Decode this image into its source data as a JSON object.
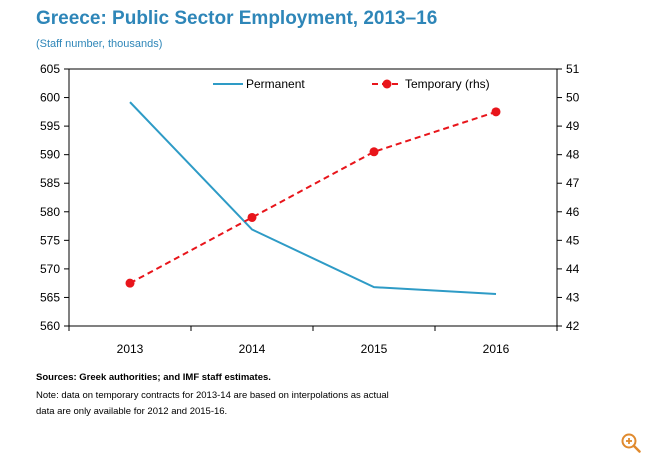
{
  "chart_data": {
    "type": "line",
    "title": "Greece: Public Sector Employment, 2013–16",
    "subtitle": "(Staff number, thousands)",
    "categories": [
      "2013",
      "2014",
      "2015",
      "2016"
    ],
    "y_left": {
      "min": 560,
      "max": 605,
      "step": 5
    },
    "y_right": {
      "min": 42,
      "max": 51,
      "step": 1
    },
    "grid": false,
    "legend_position": "top-right",
    "series": [
      {
        "name": "Permanent",
        "axis": "left",
        "style": "solid",
        "values": [
          599.2,
          576.9,
          566.8,
          565.6
        ]
      },
      {
        "name": "Temporary (rhs)",
        "axis": "right",
        "style": "dashed-markers",
        "values": [
          43.5,
          45.8,
          48.1,
          49.5
        ]
      }
    ]
  },
  "colors": {
    "title": "#2e86b8",
    "permanent": "#2e9bc6",
    "temporary": "#e8151b"
  },
  "notes": {
    "sources": "Sources: Greek authorities; and IMF staff estimates.",
    "line1": "Note: data on temporary contracts for 2013-14 are based on interpolations as actual",
    "line2": "data are only available for 2012 and 2015-16."
  },
  "controls": {
    "zoom_icon": "zoom-in-icon"
  }
}
